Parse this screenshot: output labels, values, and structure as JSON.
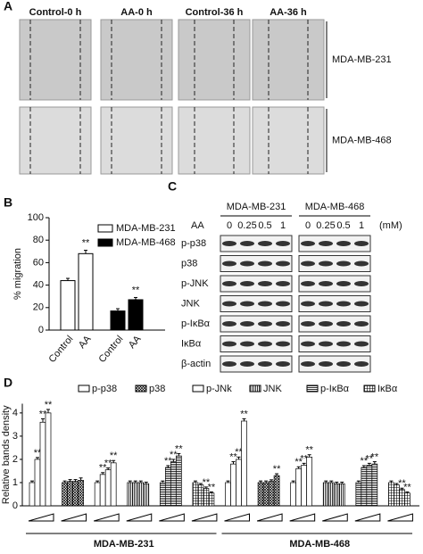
{
  "figure": {
    "panel_a": {
      "label": "A",
      "columns": [
        "Control-0 h",
        "AA-0 h",
        "Control-36 h",
        "AA-36 h"
      ],
      "rows": [
        "MDA-MB-231",
        "MDA-MB-468"
      ]
    },
    "panel_c": {
      "label": "C",
      "cell_lines": [
        "MDA-MB-231",
        "MDA-MB-468"
      ],
      "treatment": "AA",
      "doses": [
        "0",
        "0.25",
        "0.5",
        "1"
      ],
      "unit": "(mM)",
      "proteins": [
        "p-p38",
        "p38",
        "p-JNK",
        "JNK",
        "p-IκBα",
        "IκBα",
        "β-actin"
      ]
    }
  },
  "chart_data": [
    {
      "panel": "B",
      "type": "bar",
      "ylabel": "% migration",
      "categories": [
        "Control",
        "AA",
        "Control",
        "AA"
      ],
      "ylim": [
        0,
        100
      ],
      "yticks": [
        0,
        20,
        40,
        60,
        80,
        100
      ],
      "annotation": "**",
      "series": [
        {
          "name": "MDA-MB-231",
          "color": "#ffffff",
          "values": [
            44,
            68,
            null,
            null
          ],
          "errors": [
            2,
            3,
            null,
            null
          ],
          "significant": [
            false,
            true,
            false,
            false
          ]
        },
        {
          "name": "MDA-MB-468",
          "color": "#000000",
          "values": [
            null,
            null,
            17,
            27
          ],
          "errors": [
            null,
            null,
            2,
            2
          ],
          "significant": [
            false,
            false,
            false,
            true
          ]
        }
      ]
    },
    {
      "panel": "D",
      "type": "grouped_bar",
      "ylabel": "Relative bands density",
      "groups": [
        "MDA-MB-231",
        "MDA-MB-468"
      ],
      "ylim": [
        0,
        4.4
      ],
      "yticks": [
        0,
        1,
        2,
        3,
        4
      ],
      "annotation": "**",
      "series": [
        {
          "name": "p-p38",
          "fill": "white",
          "values": [
            1,
            2.0,
            3.6,
            4.0,
            1,
            1.8,
            2.0,
            3.65
          ],
          "errors": [
            0.07,
            0.08,
            0.15,
            0.15,
            0.07,
            0.1,
            0.1,
            0.1
          ],
          "significant": [
            false,
            true,
            true,
            true,
            false,
            true,
            true,
            true
          ]
        },
        {
          "name": "p38",
          "fill": "crosshatch",
          "values": [
            1,
            1.05,
            1.05,
            1.1,
            1,
            1.0,
            1.05,
            1.3
          ],
          "errors": [
            0.07,
            0.08,
            0.08,
            0.1,
            0.07,
            0.07,
            0.07,
            0.08
          ],
          "significant": [
            false,
            false,
            false,
            false,
            false,
            false,
            false,
            true
          ]
        },
        {
          "name": "p-JNk",
          "fill": "white",
          "values": [
            1,
            1.35,
            1.55,
            1.85,
            1,
            1.6,
            1.75,
            2.1
          ],
          "errors": [
            0.07,
            0.08,
            0.08,
            0.1,
            0.07,
            0.08,
            0.08,
            0.1
          ],
          "significant": [
            false,
            true,
            true,
            true,
            false,
            true,
            true,
            true
          ]
        },
        {
          "name": "JNK",
          "fill": "vertical",
          "values": [
            1,
            1.0,
            1.0,
            0.95,
            1,
            1.0,
            0.95,
            0.95
          ],
          "errors": [
            0.07,
            0.07,
            0.07,
            0.07,
            0.07,
            0.07,
            0.07,
            0.07
          ],
          "significant": [
            false,
            false,
            false,
            false,
            false,
            false,
            false,
            false
          ]
        },
        {
          "name": "p-IκBα",
          "fill": "horizontal",
          "values": [
            1,
            1.65,
            1.9,
            2.15,
            1,
            1.65,
            1.75,
            1.8
          ],
          "errors": [
            0.07,
            0.08,
            0.1,
            0.1,
            0.07,
            0.08,
            0.08,
            0.1
          ],
          "significant": [
            false,
            true,
            true,
            true,
            false,
            true,
            true,
            true
          ]
        },
        {
          "name": "IκBα",
          "fill": "grid",
          "values": [
            1,
            0.9,
            0.75,
            0.55,
            1,
            0.9,
            0.7,
            0.55
          ],
          "errors": [
            0.07,
            0.06,
            0.06,
            0.05,
            0.07,
            0.06,
            0.06,
            0.05
          ],
          "significant": [
            false,
            false,
            true,
            true,
            false,
            false,
            true,
            true
          ]
        }
      ]
    }
  ]
}
